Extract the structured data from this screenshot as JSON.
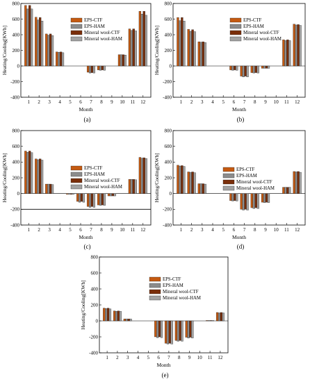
{
  "colors": {
    "EPS-CTF": "#c55a11",
    "EPS-HAM": "#8c8c8c",
    "Mineral wool-CTF": "#7a2e0a",
    "Mineral wool-HAM": "#a3a3a3",
    "bar_stroke": "#222222",
    "axis": "#000000"
  },
  "chart_data": [
    {
      "type": "bar",
      "caption": "(a)",
      "xlabel": "Month",
      "ylabel": "Heating/Cooling[KWh]",
      "ylim": [
        -400,
        800
      ],
      "yticks": [
        -400,
        -200,
        0,
        200,
        400,
        600,
        800
      ],
      "categories": [
        "1",
        "2",
        "3",
        "4",
        "5",
        "6",
        "7",
        "8",
        "9",
        "10",
        "11",
        "12"
      ],
      "legend": {
        "position": "top-center",
        "entries": [
          "EPS-CTF",
          "EPS-HAM",
          "Mineral wool-CTF",
          "Mineral wool-HAM"
        ]
      },
      "series": [
        {
          "name": "EPS-CTF",
          "values": [
            775,
            625,
            410,
            180,
            0,
            0,
            -80,
            -50,
            0,
            145,
            475,
            700
          ]
        },
        {
          "name": "EPS-HAM",
          "values": [
            730,
            590,
            395,
            175,
            0,
            0,
            -90,
            -55,
            0,
            145,
            455,
            665
          ]
        },
        {
          "name": "Mineral wool-CTF",
          "values": [
            775,
            620,
            410,
            180,
            0,
            0,
            -85,
            -50,
            0,
            145,
            475,
            700
          ]
        },
        {
          "name": "Mineral wool-HAM",
          "values": [
            730,
            575,
            390,
            170,
            0,
            0,
            -90,
            -55,
            0,
            140,
            450,
            650
          ]
        }
      ]
    },
    {
      "type": "bar",
      "caption": "(b)",
      "xlabel": "Month",
      "ylabel": "Heating/Cooling[KWh]",
      "ylim": [
        -400,
        800
      ],
      "yticks": [
        -400,
        -200,
        0,
        200,
        400,
        600,
        800
      ],
      "categories": [
        "1",
        "2",
        "3",
        "4",
        "5",
        "6",
        "7",
        "8",
        "9",
        "10",
        "11",
        "12"
      ],
      "legend": {
        "position": "top-center",
        "entries": [
          "EPS-CTF",
          "EPS-HAM",
          "Mineral wool-CTF",
          "Mineral wool-HAM"
        ]
      },
      "series": [
        {
          "name": "EPS-CTF",
          "values": [
            620,
            470,
            310,
            0,
            0,
            -50,
            -130,
            -85,
            -30,
            0,
            335,
            535
          ]
        },
        {
          "name": "EPS-HAM",
          "values": [
            580,
            445,
            305,
            0,
            0,
            -55,
            -140,
            -90,
            -30,
            0,
            325,
            525
          ]
        },
        {
          "name": "Mineral wool-CTF",
          "values": [
            620,
            465,
            310,
            0,
            0,
            -50,
            -130,
            -85,
            -30,
            0,
            335,
            530
          ]
        },
        {
          "name": "Mineral wool-HAM",
          "values": [
            575,
            440,
            300,
            0,
            0,
            -55,
            -140,
            -90,
            -30,
            0,
            325,
            520
          ]
        }
      ]
    },
    {
      "type": "bar",
      "caption": "(c)",
      "xlabel": "Month",
      "ylabel": "Heating/Cooling[KWh]",
      "ylim": [
        -400,
        800
      ],
      "yticks": [
        -400,
        -200,
        0,
        200,
        400,
        600,
        800
      ],
      "categories": [
        "1",
        "2",
        "3",
        "4",
        "5",
        "6",
        "7",
        "8",
        "9",
        "10",
        "11",
        "12"
      ],
      "legend": {
        "position": "top-center",
        "entries": [
          "EPS-CTF",
          "EPS-HAM",
          "Mineral wool-CTF",
          "Mineral wool-HAM"
        ]
      },
      "reference_line": -200,
      "series": [
        {
          "name": "EPS-CTF",
          "values": [
            540,
            440,
            120,
            0,
            -10,
            -100,
            -165,
            -145,
            -30,
            0,
            180,
            460
          ]
        },
        {
          "name": "EPS-HAM",
          "values": [
            525,
            430,
            120,
            0,
            -10,
            -110,
            -175,
            -150,
            -30,
            0,
            180,
            450
          ]
        },
        {
          "name": "Mineral wool-CTF",
          "values": [
            540,
            440,
            120,
            0,
            -10,
            -100,
            -165,
            -145,
            -30,
            0,
            180,
            455
          ]
        },
        {
          "name": "Mineral wool-HAM",
          "values": [
            520,
            425,
            115,
            0,
            -10,
            -110,
            -175,
            -150,
            -30,
            0,
            175,
            445
          ]
        }
      ]
    },
    {
      "type": "bar",
      "caption": "(d)",
      "xlabel": "Month",
      "ylabel": "Heating/Cooling[KWh]",
      "ylim": [
        -400,
        800
      ],
      "yticks": [
        -400,
        -200,
        0,
        200,
        400,
        600,
        800
      ],
      "categories": [
        "1",
        "2",
        "3",
        "4",
        "5",
        "6",
        "7",
        "8",
        "9",
        "10",
        "11",
        "12"
      ],
      "legend": {
        "position": "top-center",
        "entries": [
          "EPS-CTF",
          "EPS-HAM",
          "Mineral wool-CTF",
          "Mineral wool-HAM"
        ]
      },
      "series": [
        {
          "name": "EPS-CTF",
          "values": [
            360,
            275,
            125,
            0,
            0,
            -90,
            -200,
            -180,
            -110,
            0,
            80,
            280
          ]
        },
        {
          "name": "EPS-HAM",
          "values": [
            350,
            270,
            125,
            0,
            0,
            -95,
            -210,
            -190,
            -115,
            0,
            80,
            275
          ]
        },
        {
          "name": "Mineral wool-CTF",
          "values": [
            355,
            275,
            125,
            0,
            0,
            -90,
            -200,
            -180,
            -110,
            0,
            80,
            280
          ]
        },
        {
          "name": "Mineral wool-HAM",
          "values": [
            345,
            265,
            120,
            0,
            0,
            -95,
            -210,
            -190,
            -115,
            0,
            80,
            270
          ]
        }
      ]
    },
    {
      "type": "bar",
      "caption": "(e)",
      "xlabel": "Month",
      "ylabel": "Heating/Cooling[KWh]",
      "ylim": [
        -400,
        800
      ],
      "yticks": [
        -400,
        -200,
        0,
        200,
        400,
        600,
        800
      ],
      "categories": [
        "1",
        "2",
        "3",
        "4",
        "5",
        "6",
        "7",
        "8",
        "9",
        "10",
        "11",
        "12"
      ],
      "legend": {
        "position": "top-center",
        "entries": [
          "EPS-CTF",
          "EPS-HAM",
          "Mineral wool-CTF",
          "Mineral wool-HAM"
        ]
      },
      "series": [
        {
          "name": "EPS-CTF",
          "values": [
            160,
            125,
            25,
            0,
            0,
            -200,
            -280,
            -245,
            -205,
            0,
            5,
            105
          ]
        },
        {
          "name": "EPS-HAM",
          "values": [
            155,
            120,
            25,
            0,
            0,
            -210,
            -290,
            -255,
            -215,
            0,
            5,
            100
          ]
        },
        {
          "name": "Mineral wool-CTF",
          "values": [
            160,
            125,
            25,
            0,
            0,
            -200,
            -280,
            -245,
            -205,
            0,
            5,
            105
          ]
        },
        {
          "name": "Mineral wool-HAM",
          "values": [
            150,
            120,
            25,
            0,
            0,
            -210,
            -290,
            -255,
            -215,
            0,
            5,
            100
          ]
        }
      ]
    }
  ]
}
